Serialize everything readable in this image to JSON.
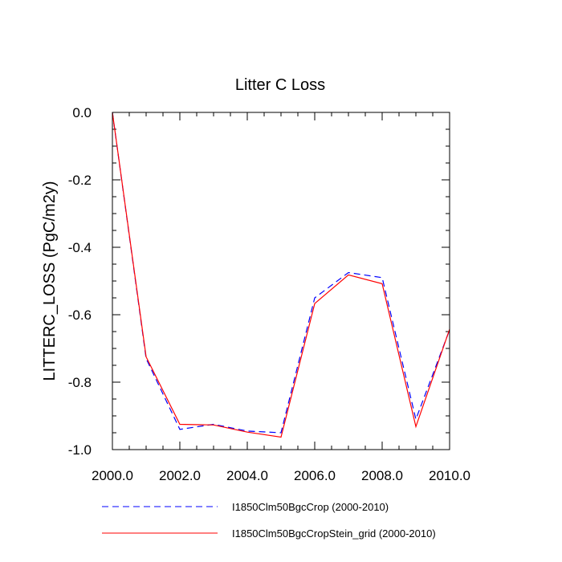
{
  "chart_data": {
    "type": "line",
    "title": "Litter C Loss",
    "xlabel": "",
    "ylabel": "LITTERC_LOSS  (PgC/m2y)",
    "xlim": [
      2000,
      2010
    ],
    "ylim": [
      -1.0,
      0.0
    ],
    "x_ticks": [
      2000,
      2002,
      2004,
      2006,
      2008,
      2010
    ],
    "x_tick_labels": [
      "2000.0",
      "2002.0",
      "2004.0",
      "2006.0",
      "2008.0",
      "2010.0"
    ],
    "y_ticks": [
      0.0,
      -0.2,
      -0.4,
      -0.6,
      -0.8,
      -1.0
    ],
    "y_tick_labels": [
      "0.0",
      "-0.2",
      "-0.4",
      "-0.6",
      "-0.8",
      "-1.0"
    ],
    "grid": false,
    "legend_position": "bottom",
    "x": [
      2000,
      2001,
      2002,
      2003,
      2004,
      2005,
      2006,
      2007,
      2008,
      2009,
      2010
    ],
    "series": [
      {
        "name": "I1850Clm50BgcCrop (2000-2010)",
        "color": "#0000ff",
        "dash": "dashed",
        "values": [
          0.0,
          -0.73,
          -0.94,
          -0.925,
          -0.945,
          -0.95,
          -0.55,
          -0.475,
          -0.49,
          -0.91,
          -0.645
        ]
      },
      {
        "name": "I1850Clm50BgcCropStein_grid (2000-2010)",
        "color": "#ff0000",
        "dash": "solid",
        "values": [
          0.0,
          -0.725,
          -0.925,
          -0.927,
          -0.948,
          -0.963,
          -0.567,
          -0.482,
          -0.508,
          -0.932,
          -0.643
        ]
      }
    ]
  }
}
